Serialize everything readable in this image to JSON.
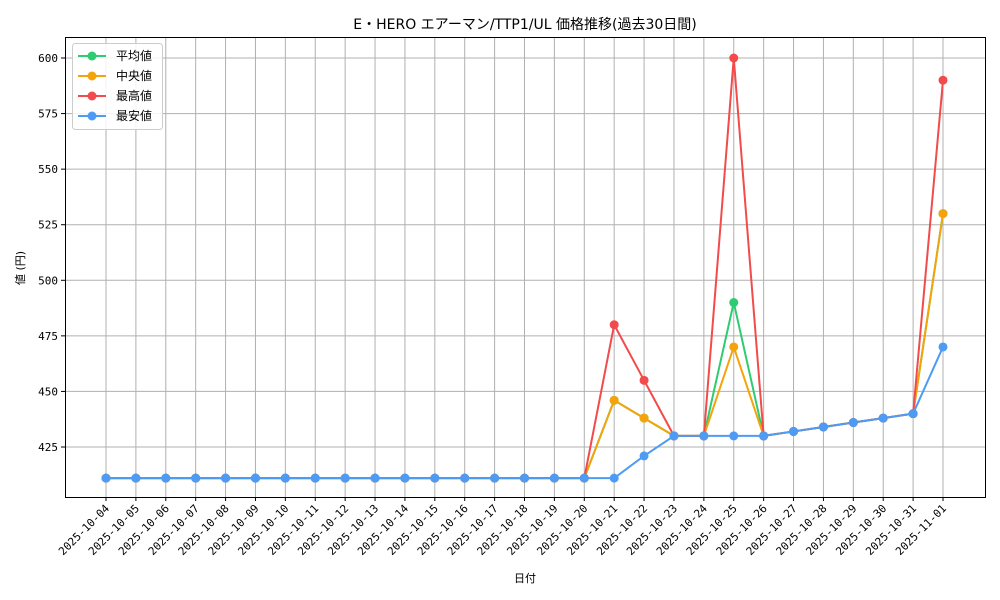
{
  "chart_data": {
    "type": "line",
    "title": "E・HERO エアーマン/TTP1/UL 価格推移(過去30日間)",
    "xlabel": "日付",
    "ylabel": "値 (円)",
    "ylim": [
      403,
      609
    ],
    "yticks": [
      425,
      450,
      475,
      500,
      525,
      550,
      575,
      600
    ],
    "grid": true,
    "legend_position": "upper left",
    "categories": [
      "2025-10-04",
      "2025-10-05",
      "2025-10-06",
      "2025-10-07",
      "2025-10-08",
      "2025-10-09",
      "2025-10-10",
      "2025-10-11",
      "2025-10-12",
      "2025-10-13",
      "2025-10-14",
      "2025-10-15",
      "2025-10-16",
      "2025-10-17",
      "2025-10-18",
      "2025-10-19",
      "2025-10-20",
      "2025-10-21",
      "2025-10-22",
      "2025-10-23",
      "2025-10-24",
      "2025-10-25",
      "2025-10-26",
      "2025-10-27",
      "2025-10-28",
      "2025-10-29",
      "2025-10-30",
      "2025-10-31",
      "2025-11-01"
    ],
    "series": [
      {
        "name": "平均値",
        "color": "#2ecc71",
        "values": [
          411,
          411,
          411,
          411,
          411,
          411,
          411,
          411,
          411,
          411,
          411,
          411,
          411,
          411,
          411,
          411,
          411,
          446,
          438,
          430,
          430,
          490,
          430,
          432,
          434,
          436,
          438,
          440,
          530
        ]
      },
      {
        "name": "中央値",
        "color": "#f5a30a",
        "values": [
          411,
          411,
          411,
          411,
          411,
          411,
          411,
          411,
          411,
          411,
          411,
          411,
          411,
          411,
          411,
          411,
          411,
          446,
          438,
          430,
          430,
          470,
          430,
          432,
          434,
          436,
          438,
          440,
          530
        ]
      },
      {
        "name": "最高値",
        "color": "#f24b4b",
        "values": [
          411,
          411,
          411,
          411,
          411,
          411,
          411,
          411,
          411,
          411,
          411,
          411,
          411,
          411,
          411,
          411,
          411,
          480,
          455,
          430,
          430,
          600,
          430,
          432,
          434,
          436,
          438,
          440,
          590
        ]
      },
      {
        "name": "最安値",
        "color": "#4d9bf5",
        "values": [
          411,
          411,
          411,
          411,
          411,
          411,
          411,
          411,
          411,
          411,
          411,
          411,
          411,
          411,
          411,
          411,
          411,
          411,
          421,
          430,
          430,
          430,
          430,
          432,
          434,
          436,
          438,
          440,
          470
        ]
      }
    ]
  }
}
